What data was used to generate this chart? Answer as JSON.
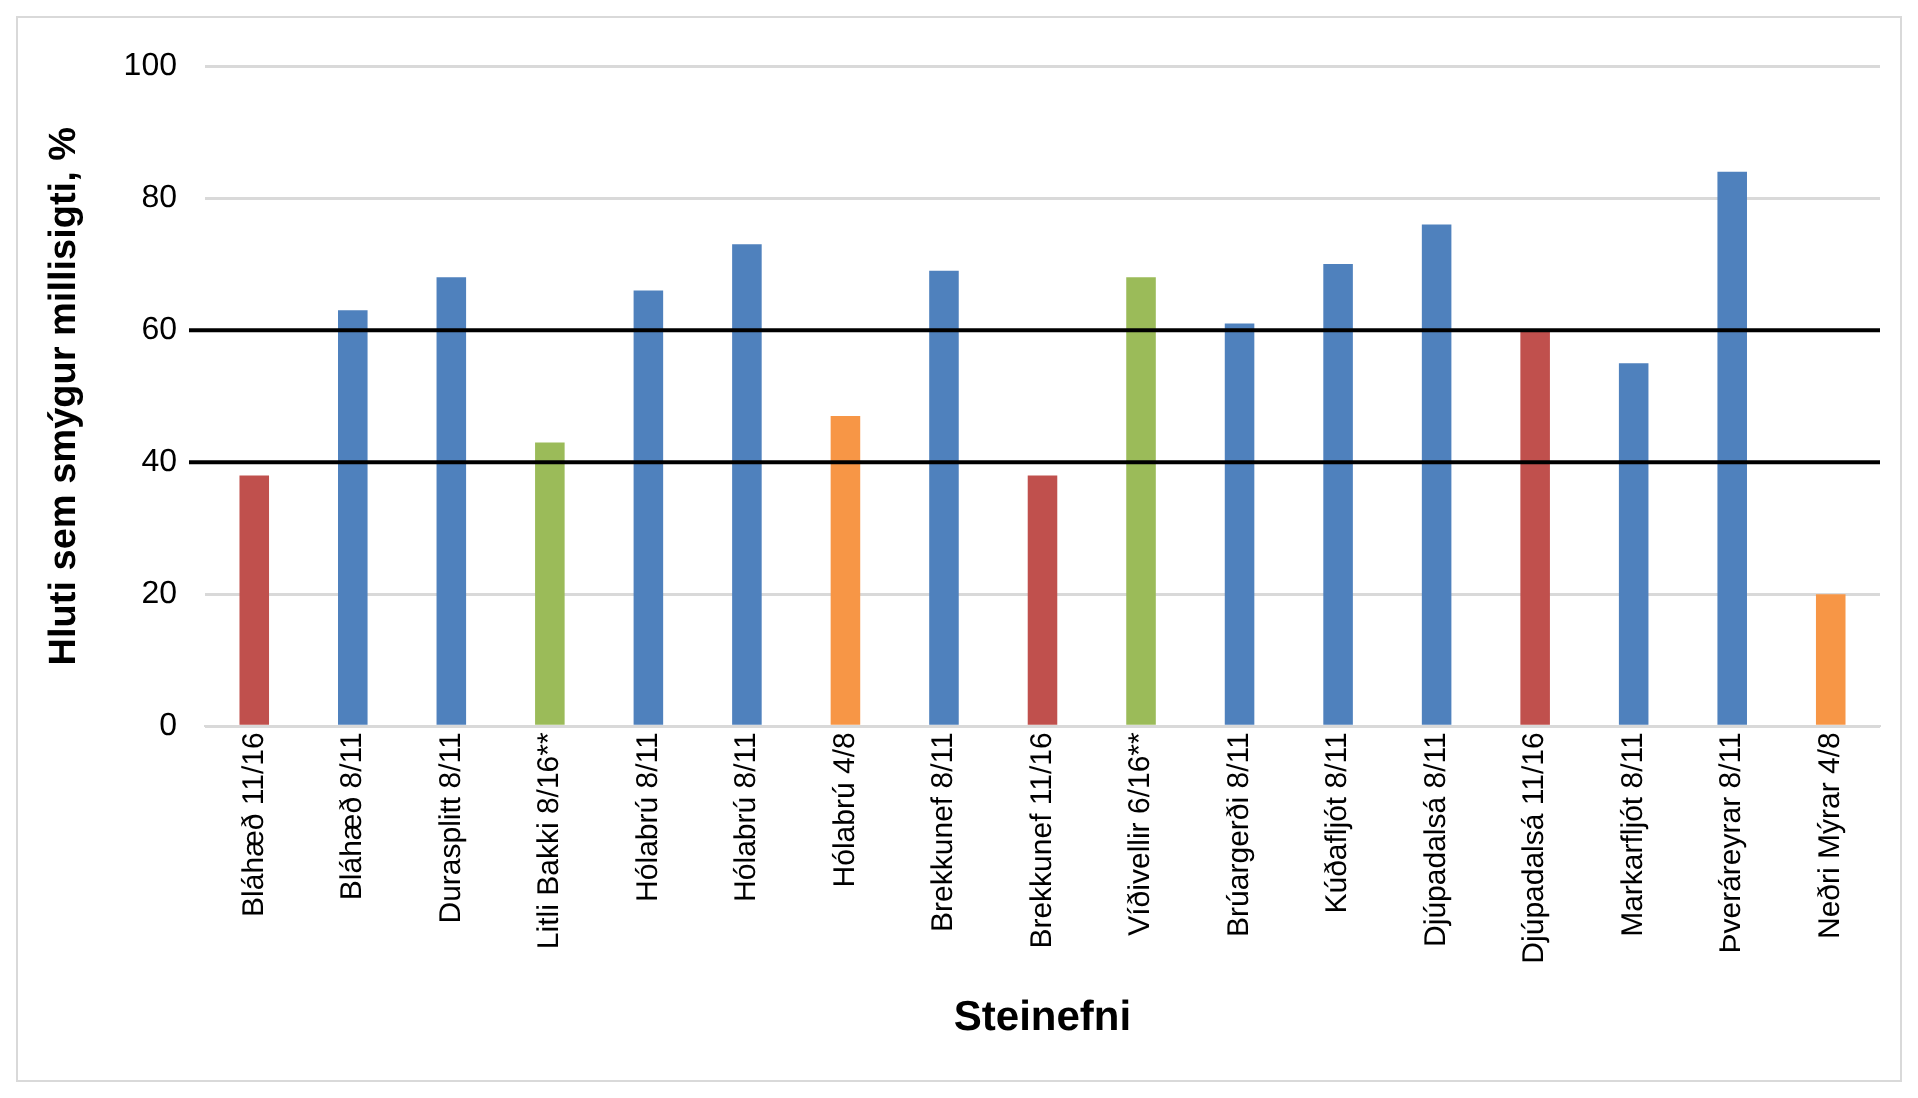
{
  "chart_data": {
    "type": "bar",
    "xlabel": "Steinefni",
    "ylabel": "Hluti sem smýgur millisigti, %",
    "categories": [
      "Bláhæð 11/16",
      "Bláhæð 8/11",
      "Durasplitt 8/11",
      "Litli Bakki 8/16**",
      "Hólabrú 8/11",
      "Hólabrú 8/11",
      "Hólabrú 4/8",
      "Brekkunef 8/11",
      "Brekkunef 11/16",
      "Víðivellir 6/16**",
      "Brúargerði 8/11",
      "Kúðafljót 8/11",
      "Djúpadalsá 8/11",
      "Djúpadalsá 11/16",
      "Markarfljót 8/11",
      "Þveráreyrar 8/11",
      "Neðri Mýrar 4/8"
    ],
    "values": [
      38,
      63,
      68,
      43,
      66,
      73,
      47,
      69,
      38,
      68,
      61,
      70,
      76,
      60,
      55,
      84,
      20
    ],
    "colors": [
      "#c0504d",
      "#4f81bd",
      "#4f81bd",
      "#9bbb59",
      "#4f81bd",
      "#4f81bd",
      "#f79646",
      "#4f81bd",
      "#c0504d",
      "#9bbb59",
      "#4f81bd",
      "#4f81bd",
      "#4f81bd",
      "#c0504d",
      "#4f81bd",
      "#4f81bd",
      "#f79646"
    ],
    "ylim": [
      0,
      100
    ],
    "yticks": [
      0,
      20,
      40,
      60,
      80,
      100
    ],
    "grid": "y",
    "ref_lines": [
      {
        "axis": "y",
        "value": 40,
        "color": "#000000"
      },
      {
        "axis": "y",
        "value": 60,
        "color": "#000000"
      }
    ]
  }
}
